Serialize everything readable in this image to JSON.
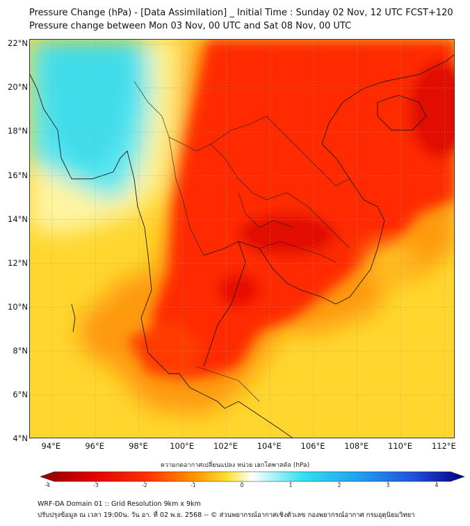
{
  "title": {
    "line1": "Pressure Change (hPa) - [Data Assimilation] _ Initial Time : Sunday 02 Nov, 12 UTC FCST+120",
    "line2": "Pressure change between Mon 03 Nov, 00 UTC and Sat 08 Nov, 00 UTC"
  },
  "map": {
    "lon_range": [
      93,
      112.5
    ],
    "lat_range": [
      4,
      22.2
    ],
    "lat_ticks": [
      "22°N",
      "20°N",
      "18°N",
      "16°N",
      "14°N",
      "12°N",
      "10°N",
      "8°N",
      "6°N",
      "4°N"
    ],
    "lon_ticks": [
      "94°E",
      "96°E",
      "98°E",
      "100°E",
      "102°E",
      "104°E",
      "106°E",
      "108°E",
      "110°E",
      "112°E"
    ],
    "gridlines": true
  },
  "colorbar": {
    "label": "ความกดอากาศเปลี่ยนแปลง หน่วย เฮกโตพาสคัล (hPa)",
    "range": [
      -4,
      4
    ],
    "ticks": [
      "-4",
      "-3",
      "-2",
      "-1",
      "0",
      "1",
      "2",
      "3",
      "4"
    ],
    "colors": {
      "dark_red": "#8b0000",
      "red": "#ff2000",
      "orange": "#ff9a00",
      "yellow": "#ffe030",
      "white": "#ffffff",
      "cyan": "#30e0f0",
      "blue": "#2050e0",
      "dark_blue": "#000080"
    }
  },
  "footer": {
    "line1": "WRF-DA Domain 01 :: Grid Resolution 9km x 9km",
    "line2": "ปรับปรุงข้อมูล ณ เวลา 19:00น. วัน อา. ที่ 02 พ.ย. 2568 -- © ส่วนพยากรณ์อากาศเชิงตัวเลข กองพยากรณ์อากาศ กรมอุตุนิยมวิทยา"
  }
}
